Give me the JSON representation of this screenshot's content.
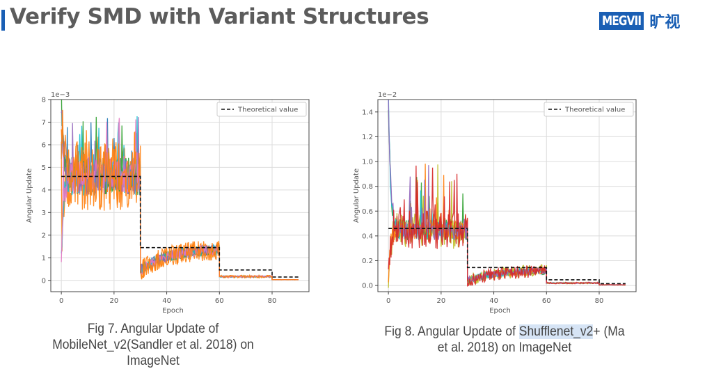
{
  "slide": {
    "title": "Verify SMD with Variant Structures",
    "accent_color": "#1a5fb4",
    "logo": {
      "brand": "MEGVII",
      "chinese": "旷视"
    }
  },
  "captions": [
    {
      "line1": "Fig 7. Angular Update of",
      "line2": "MobileNet_v2(Sandler et al. 2018) on",
      "line3": "ImageNet"
    },
    {
      "pre": "Fig 8. Angular Update of ",
      "highlight": "Shufflenet_v2",
      "post": "+ (Ma",
      "line2": "et al. 2018) on ImageNet"
    }
  ],
  "chart_data": [
    {
      "type": "line",
      "title": "",
      "xlabel": "Epoch",
      "ylabel": "Angular Update",
      "y_scale_label": "1e−3",
      "xlim": [
        -4,
        94
      ],
      "ylim": [
        -0.5,
        8
      ],
      "xticks": [
        0,
        20,
        40,
        60,
        80
      ],
      "yticks": [
        0,
        1,
        2,
        3,
        4,
        5,
        6,
        7,
        8
      ],
      "grid": true,
      "legend": {
        "position": "top-right",
        "entries": [
          "Theoretical value"
        ]
      },
      "theoretical": [
        {
          "x0": 0,
          "x1": 30,
          "y": 4.6
        },
        {
          "x0": 30,
          "x1": 60,
          "y": 1.45
        },
        {
          "x0": 60,
          "x1": 80,
          "y": 0.46
        },
        {
          "x0": 80,
          "x1": 90,
          "y": 0.15
        }
      ],
      "series_colors": [
        "#1f77b4",
        "#ff7f0e",
        "#2ca02c",
        "#17becf",
        "#9467bd",
        "#e377c2",
        "#ff7f0e"
      ],
      "phases": [
        {
          "x0": 0,
          "x1": 30,
          "start": 0.6,
          "mean": 4.6,
          "spread": 1.2,
          "rise": false
        },
        {
          "x0": 30,
          "x1": 60,
          "start": 0.45,
          "mean": 1.4,
          "spread": 0.35,
          "rise": true
        },
        {
          "x0": 60,
          "x1": 80,
          "start": 0.15,
          "mean": 0.17,
          "spread": 0.04,
          "rise": false
        },
        {
          "x0": 80,
          "x1": 90,
          "start": 0.03,
          "mean": 0.03,
          "spread": 0.005,
          "rise": false
        }
      ],
      "peak_initial": 8.0,
      "max_excursion": 7.3
    },
    {
      "type": "line",
      "title": "",
      "xlabel": "Epoch",
      "ylabel": "Angular Update",
      "y_scale_label": "1e−2",
      "xlim": [
        -4,
        94
      ],
      "ylim": [
        -0.05,
        1.5
      ],
      "xticks": [
        0,
        20,
        40,
        60,
        80
      ],
      "yticks": [
        0.0,
        0.2,
        0.4,
        0.6,
        0.8,
        1.0,
        1.2,
        1.4
      ],
      "ytick_labels": [
        "0.0",
        "0.2",
        "0.4",
        "0.6",
        "0.8",
        "1.0",
        "1.2",
        "1.4"
      ],
      "grid": true,
      "legend": {
        "position": "top-right",
        "entries": [
          "Theoretical value"
        ]
      },
      "theoretical": [
        {
          "x0": 0,
          "x1": 30,
          "y": 0.46
        },
        {
          "x0": 30,
          "x1": 60,
          "y": 0.145
        },
        {
          "x0": 60,
          "x1": 80,
          "y": 0.046
        },
        {
          "x0": 80,
          "x1": 90,
          "y": 0.015
        }
      ],
      "series_colors": [
        "#2ca02c",
        "#bcbd22",
        "#17becf",
        "#ff7f0e",
        "#9467bd",
        "#d62728"
      ],
      "phases": [
        {
          "x0": 0,
          "x1": 30,
          "start": 0.0,
          "mean": 0.45,
          "spread": 0.12,
          "rise": false
        },
        {
          "x0": 30,
          "x1": 60,
          "start": 0.04,
          "mean": 0.12,
          "spread": 0.04,
          "rise": true
        },
        {
          "x0": 60,
          "x1": 80,
          "start": 0.02,
          "mean": 0.02,
          "spread": 0.005,
          "rise": false
        },
        {
          "x0": 80,
          "x1": 90,
          "start": 0.005,
          "mean": 0.005,
          "spread": 0.002,
          "rise": false
        }
      ],
      "peak_initial": 1.5,
      "max_excursion": 1.0
    }
  ]
}
